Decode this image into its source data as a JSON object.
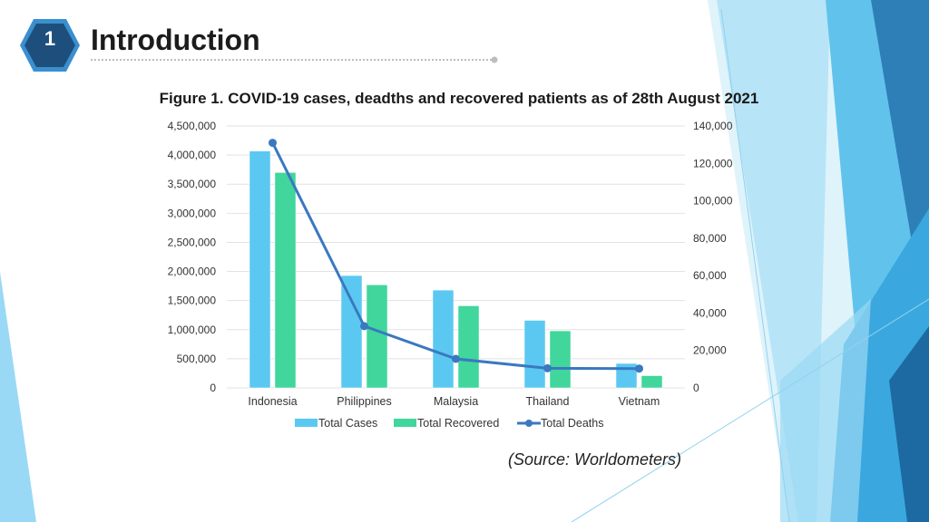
{
  "slide": {
    "number": "1",
    "title": "Introduction",
    "source": "(Source: Worldometers)"
  },
  "colors": {
    "accent_dark": "#1f5f8f",
    "accent_light": "#5fc3f0",
    "cases": "#5bc8f2",
    "recovered": "#40d69c",
    "deaths": "#3a78c0"
  },
  "chart_data": {
    "type": "bar",
    "title": "Figure 1. COVID-19 cases, deadths and recovered patients as of 28th August 2021",
    "categories": [
      "Indonesia",
      "Philippines",
      "Malaysia",
      "Thailand",
      "Vietnam"
    ],
    "series": [
      {
        "name": "Total Cases",
        "type": "bar",
        "axis": "left",
        "values": [
          4070000,
          1930000,
          1680000,
          1160000,
          420000
        ]
      },
      {
        "name": "Total Recovered",
        "type": "bar",
        "axis": "left",
        "values": [
          3700000,
          1770000,
          1410000,
          980000,
          210000
        ]
      },
      {
        "name": "Total Deaths",
        "type": "line",
        "axis": "right",
        "values": [
          131000,
          33000,
          15500,
          10500,
          10300
        ]
      }
    ],
    "left_axis": {
      "min": 0,
      "max": 4500000,
      "step": 500000,
      "ticks": [
        "0",
        "500,000",
        "1,000,000",
        "1,500,000",
        "2,000,000",
        "2,500,000",
        "3,000,000",
        "3,500,000",
        "4,000,000",
        "4,500,000"
      ]
    },
    "right_axis": {
      "min": 0,
      "max": 140000,
      "step": 20000,
      "ticks": [
        "0",
        "20,000",
        "40,000",
        "60,000",
        "80,000",
        "100,000",
        "120,000",
        "140,000"
      ]
    },
    "legend": [
      "Total Cases",
      "Total Recovered",
      "Total Deaths"
    ],
    "legend_position": "bottom"
  }
}
